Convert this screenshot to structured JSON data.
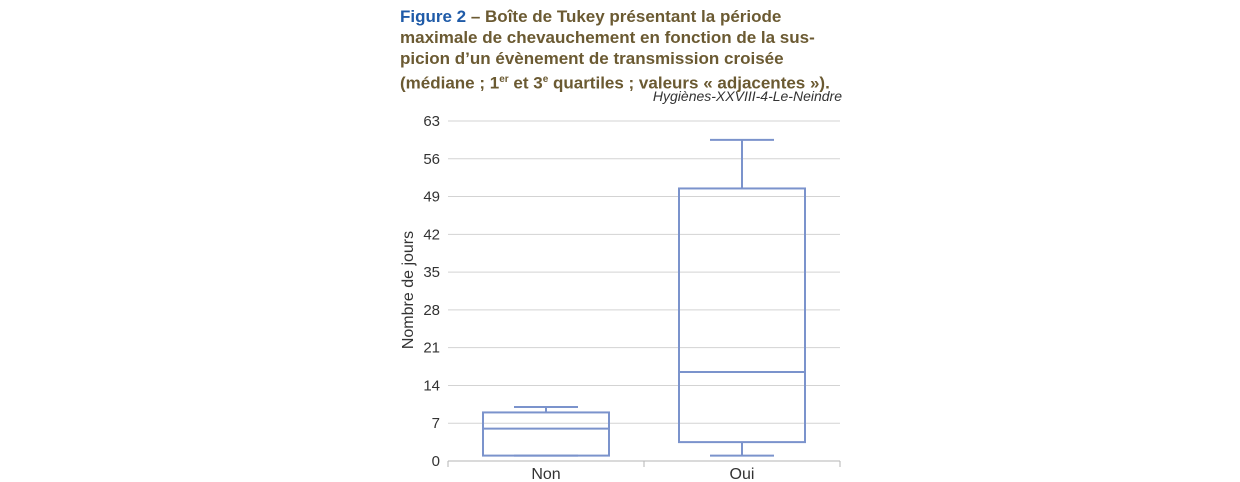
{
  "caption": {
    "figure_label": "Figure 2",
    "dash": " – ",
    "line1_text": "Boîte de Tukey présentant la période",
    "line2": "maximale de chevauchement en fonction de la sus-",
    "line3": "picion d’un évènement de transmission croisée",
    "line4_a": "(médiane ; 1",
    "sup1": "er",
    "line4_b": " et 3",
    "sup2": "e",
    "line4_c": " quartiles ; valeurs « adjacentes »)."
  },
  "source": "Hygiènes-XXVIII-4-Le-Neindre",
  "colors": {
    "box": "#7b93cc",
    "grid": "#d3d3d3",
    "axis": "#b5b5b5",
    "caption": "#6b5a32",
    "figure_label": "#1f5ba8"
  },
  "chart_data": {
    "type": "boxplot",
    "ylabel": "Nombre de jours",
    "ylim": [
      0,
      63
    ],
    "yticks": [
      0,
      7,
      14,
      21,
      28,
      35,
      42,
      49,
      56,
      63
    ],
    "grid": true,
    "categories": [
      "Non",
      "Oui"
    ],
    "boxes": [
      {
        "category": "Non",
        "whisker_low": 1,
        "q1": 1,
        "median": 6,
        "q3": 9,
        "whisker_high": 10
      },
      {
        "category": "Oui",
        "whisker_low": 1,
        "q1": 3.5,
        "median": 16.5,
        "q3": 50.5,
        "whisker_high": 59.5
      }
    ]
  }
}
